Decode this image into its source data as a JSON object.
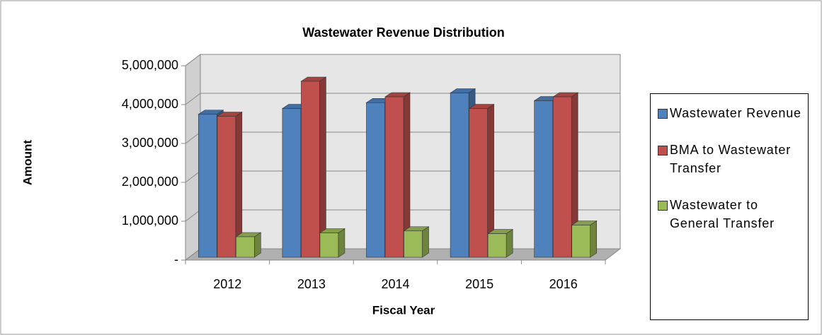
{
  "chart_data": {
    "type": "bar3d",
    "title": "Wastewater Revenue Distribution",
    "xlabel": "Fiscal Year",
    "ylabel": "Amount",
    "categories": [
      "2012",
      "2013",
      "2014",
      "2015",
      "2016"
    ],
    "series": [
      {
        "name": "Wastewater Revenue",
        "color": "#4f81bd",
        "values": [
          3750000,
          3900000,
          4050000,
          4300000,
          4100000
        ]
      },
      {
        "name": "BMA to Wastewater Transfer",
        "color": "#c0504d",
        "values": [
          3700000,
          4600000,
          4200000,
          3900000,
          4200000
        ]
      },
      {
        "name": "Wastewater to General Transfer",
        "color": "#9bbb59",
        "values": [
          600000,
          700000,
          750000,
          680000,
          900000
        ]
      }
    ],
    "ylim": [
      0,
      5000000
    ],
    "yticks": [
      {
        "value": 0,
        "label": "-"
      },
      {
        "value": 1000000,
        "label": "1,000,000"
      },
      {
        "value": 2000000,
        "label": "2,000,000"
      },
      {
        "value": 3000000,
        "label": "3,000,000"
      },
      {
        "value": 4000000,
        "label": "4,000,000"
      },
      {
        "value": 5000000,
        "label": "5,000,000"
      }
    ],
    "grid": true,
    "legend": "right"
  }
}
